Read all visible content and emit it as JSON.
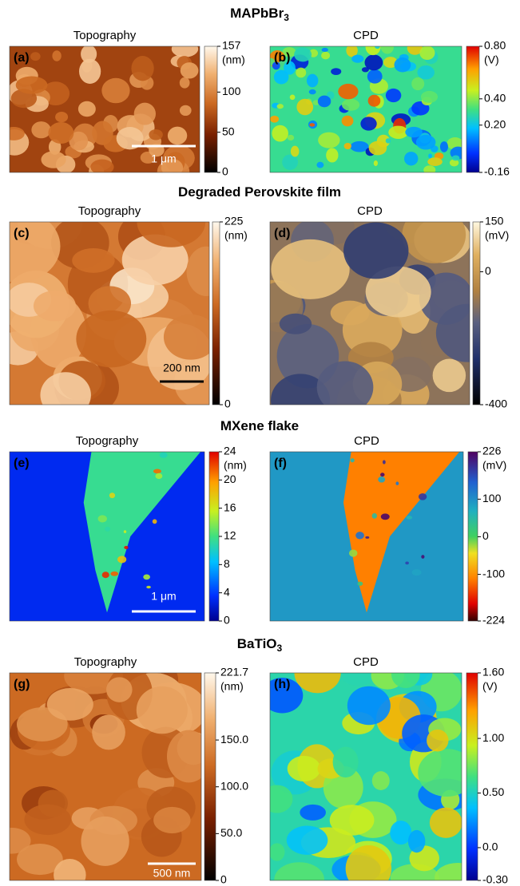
{
  "sections": [
    {
      "title": {
        "main": "MAPbBr",
        "sub": "3"
      },
      "panels": [
        {
          "heading": "Topography",
          "label": "(a)",
          "scale_bar": "1 μm",
          "colorbar": {
            "unit": "(nm)",
            "lim": [
              0,
              157
            ],
            "ticks": [
              157,
              100,
              50,
              0
            ]
          }
        },
        {
          "heading": "CPD",
          "label": "(b)",
          "colorbar": {
            "unit": "(V)",
            "lim": [
              -0.16,
              0.8
            ],
            "ticks": [
              {
                "value": 0.8,
                "label": "0.80"
              },
              {
                "value": 0.4,
                "label": "0.40"
              },
              {
                "value": 0.2,
                "label": "0.20"
              },
              -0.16
            ]
          }
        }
      ]
    },
    {
      "title": {
        "main": "Degraded Perovskite film"
      },
      "panels": [
        {
          "heading": "Topography",
          "label": "(c)",
          "scale_bar": "200 nm",
          "colorbar": {
            "unit": "(nm)",
            "lim": [
              0,
              225
            ],
            "ticks": [
              225,
              0
            ]
          }
        },
        {
          "heading": "CPD",
          "label": "(d)",
          "colorbar": {
            "unit": "(mV)",
            "lim": [
              -400,
              150
            ],
            "ticks": [
              150,
              0,
              -400
            ]
          }
        }
      ]
    },
    {
      "title": {
        "main": "MXene flake"
      },
      "panels": [
        {
          "heading": "Topography",
          "label": "(e)",
          "scale_bar": "1 μm",
          "colorbar": {
            "unit": "(nm)",
            "lim": [
              0,
              24
            ],
            "ticks": [
              24,
              20,
              16,
              12,
              8,
              4,
              0
            ]
          }
        },
        {
          "heading": "CPD",
          "label": "(f)",
          "colorbar": {
            "unit": "(mV)",
            "lim": [
              -224,
              226
            ],
            "ticks": [
              226,
              100,
              0,
              -100,
              -224
            ]
          }
        }
      ]
    },
    {
      "title": {
        "main": "BaTiO",
        "sub": "3"
      },
      "panels": [
        {
          "heading": "Topography",
          "label": "(g)",
          "scale_bar": "500 nm",
          "colorbar": {
            "unit": "(nm)",
            "lim": [
              0,
              221.7
            ],
            "ticks": [
              221.7,
              {
                "value": 150,
                "label": "150.0"
              },
              {
                "value": 100,
                "label": "100.0"
              },
              {
                "value": 50,
                "label": "50.0"
              },
              0
            ]
          }
        },
        {
          "heading": "CPD",
          "label": "(h)",
          "colorbar": {
            "unit": "(V)",
            "lim": [
              -0.3,
              1.6
            ],
            "ticks": [
              {
                "value": 1.6,
                "label": "1.60"
              },
              {
                "value": 1,
                "label": "1.00"
              },
              {
                "value": 0.5,
                "label": "0.50"
              },
              {
                "value": 0,
                "label": "0.0"
              },
              {
                "value": -0.3,
                "label": "-0.30"
              }
            ]
          }
        }
      ]
    }
  ]
}
